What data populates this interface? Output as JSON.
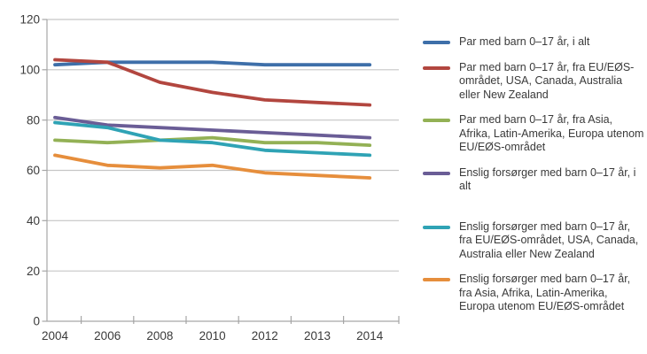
{
  "chart_data": {
    "type": "line",
    "title": "",
    "xlabel": "",
    "ylabel": "",
    "categories": [
      "2004",
      "2006",
      "2008",
      "2010",
      "2012",
      "2013",
      "2014"
    ],
    "y_ticks": [
      0,
      20,
      40,
      60,
      80,
      100,
      120
    ],
    "ylim": [
      0,
      120
    ],
    "grid": true,
    "legend_position": "right",
    "series": [
      {
        "name": "Par med barn 0–17 år, i alt",
        "color": "#3E6FA9",
        "values": [
          102,
          103,
          103,
          103,
          102,
          102,
          102
        ]
      },
      {
        "name": "Par med barn 0–17 år, fra EU/EØS-området, USA, Canada, Australia eller New Zealand",
        "color": "#B2463F",
        "values": [
          104,
          103,
          95,
          91,
          88,
          87,
          86
        ]
      },
      {
        "name": "Par med barn 0–17 år, fra Asia, Afrika, Latin-Amerika, Europa utenom EU/EØS-området",
        "color": "#93B155",
        "values": [
          72,
          71,
          72,
          73,
          71,
          71,
          70
        ]
      },
      {
        "name": "Enslig forsørger med barn 0–17 år, i alt",
        "color": "#6A5D96",
        "values": [
          81,
          78,
          77,
          76,
          75,
          74,
          73
        ]
      },
      {
        "name": "Enslig forsørger med barn 0–17 år, fra EU/EØS-området, USA, Canada, Australia eller New Zealand",
        "color": "#2FA3B5",
        "values": [
          79,
          77,
          72,
          71,
          68,
          67,
          66
        ]
      },
      {
        "name": "Enslig forsørger med barn 0–17 år, fra Asia, Afrika, Latin-Amerika, Europa utenom EU/EØS-området",
        "color": "#E68E3C",
        "values": [
          66,
          62,
          61,
          62,
          59,
          58,
          57
        ]
      }
    ],
    "style": {
      "grid_color": "#C6C6C6",
      "axis_color": "#A6A6A6",
      "label_color": "#3A3A3A",
      "line_width": 3.8
    }
  }
}
